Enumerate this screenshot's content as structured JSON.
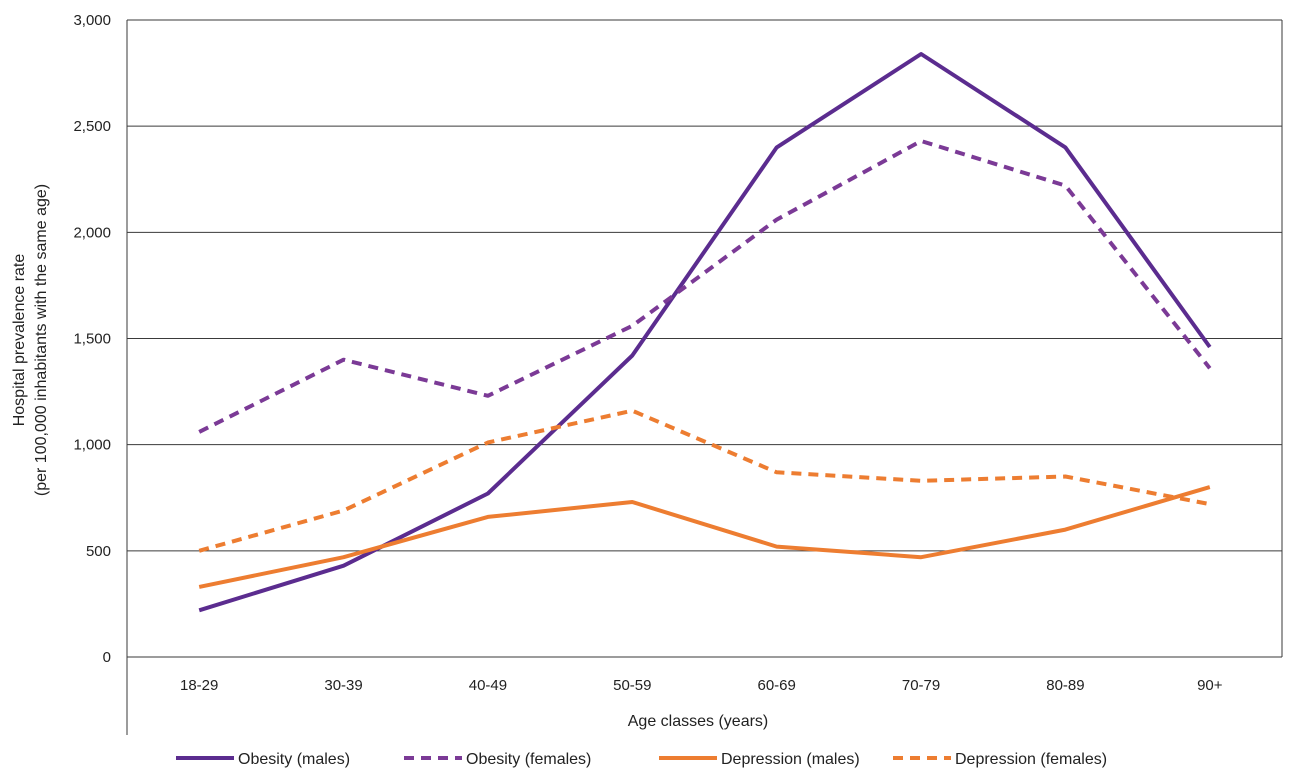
{
  "chart_data": {
    "type": "line",
    "title": "",
    "xlabel": "Age classes (years)",
    "ylabel_line1": "Hospital prevalence rate",
    "ylabel_line2": "(per 100,000 inhabitants with the same age)",
    "categories": [
      "18-29",
      "30-39",
      "40-49",
      "50-59",
      "60-69",
      "70-79",
      "80-89",
      "90+"
    ],
    "ylim": [
      0,
      3000
    ],
    "yticks": [
      0,
      500,
      1000,
      1500,
      2000,
      2500,
      3000
    ],
    "ytick_labels": [
      "0",
      "500",
      "1,000",
      "1,500",
      "2,000",
      "2,500",
      "3,000"
    ],
    "grid": true,
    "legend_position": "bottom",
    "series": [
      {
        "name": "Obesity (males)",
        "color": "#5b2c8f",
        "dash": "solid",
        "values": [
          220,
          430,
          770,
          1420,
          2400,
          2840,
          2400,
          1460
        ]
      },
      {
        "name": "Obesity (females)",
        "color": "#7b3a96",
        "dash": "dashed",
        "values": [
          1060,
          1400,
          1230,
          1560,
          2060,
          2430,
          2220,
          1360
        ]
      },
      {
        "name": "Depression (males)",
        "color": "#ed7d31",
        "dash": "solid",
        "values": [
          330,
          470,
          660,
          730,
          520,
          470,
          600,
          800
        ]
      },
      {
        "name": "Depression (females)",
        "color": "#ed7d31",
        "dash": "dashed",
        "values": [
          500,
          690,
          1010,
          1160,
          870,
          830,
          850,
          720
        ]
      }
    ]
  }
}
